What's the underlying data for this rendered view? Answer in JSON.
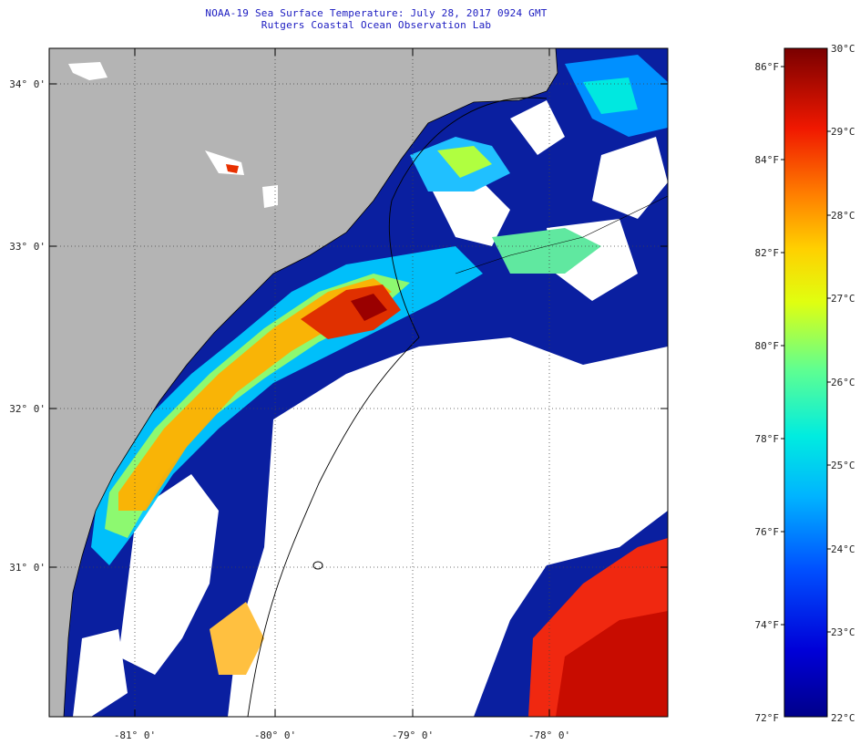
{
  "title": "NOAA-19 Sea Surface Temperature:  July 28, 2017 0924 GMT",
  "subtitle": "Rutgers Coastal Ocean Observation Lab",
  "latitude_labels": [
    "34° 0'",
    "33° 0'",
    "32° 0'",
    "31° 0'"
  ],
  "longitude_labels": [
    "-81° 0'",
    "-80° 0'",
    "-79° 0'",
    "-78° 0'"
  ],
  "colorbar": {
    "fahrenheit_labels": [
      "86°F",
      "84°F",
      "82°F",
      "80°F",
      "78°F",
      "76°F",
      "74°F",
      "72°F"
    ],
    "celsius_labels": [
      "30°C",
      "29°C",
      "28°C",
      "27°C",
      "26°C",
      "25°C",
      "24°C",
      "23°C",
      "22°C"
    ],
    "range_celsius": [
      22,
      30
    ]
  },
  "colors": {
    "land": "#b4b4b4",
    "cloud": "#ffffff",
    "title": "#1a1ac0"
  },
  "map_features": [
    "land-area",
    "cloud-cover",
    "coastline",
    "shelf-contour",
    "graticule"
  ]
}
